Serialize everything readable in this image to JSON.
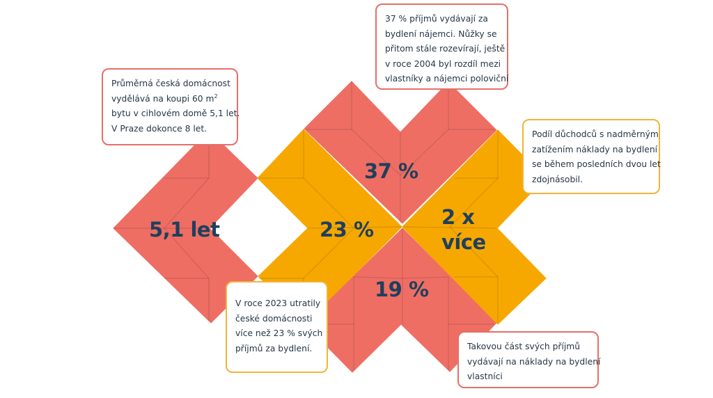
{
  "colors": {
    "coral": "#ee6e64",
    "gold": "#f6a800",
    "text": "#1f3f5c",
    "box_coral": "#e56f68",
    "box_gold": "#f2b33a"
  },
  "stats": {
    "years": "5,1 let",
    "share_23": "23 %",
    "share_37": "37 %",
    "double_line1": "2 x",
    "double_line2": "více",
    "share_19": "19 %"
  },
  "callouts": {
    "years": {
      "line1": "Průměrná česká domácnost",
      "line2_pre": "vydělává na koupi 60 m",
      "line2_sup": "2",
      "line3": "bytu v cihlovém domě 5,1 let.",
      "line4": "V Praze dokonce 8 let."
    },
    "renters": {
      "line1": "37 % příjmů vydávají za",
      "line2": "bydlení nájemci. Nůžky se",
      "line3": "přitom stále rozevírají, ještě",
      "line4": "v roce 2004 byl rozdíl mezi",
      "line5": "vlastníky a nájemci poloviční"
    },
    "pensioners": {
      "line1": "Podíl důchodců s nadměrným",
      "line2": "zatížením náklady na bydlení",
      "line3": "se během posledních dvou let",
      "line4": "zdojnásobil."
    },
    "households": {
      "line1": "V roce 2023 utratily",
      "line2": "české domácnosti",
      "line3": "více než 23 % svých",
      "line4": "příjmů za bydlení."
    },
    "owners": {
      "line1": "Takovou část svých příjmů",
      "line2": "vydávají na náklady na bydlení",
      "line3": "vlastníci"
    }
  }
}
